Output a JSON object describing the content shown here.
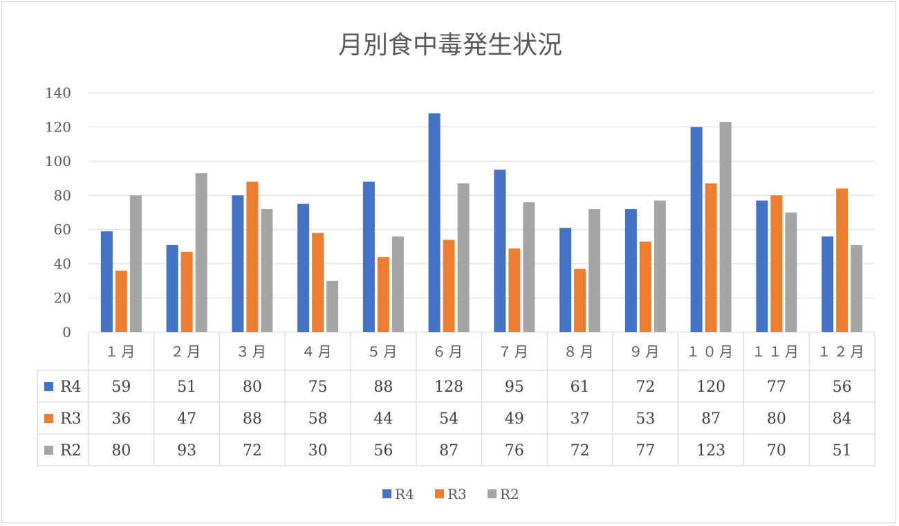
{
  "chart_data": {
    "type": "bar",
    "title": "月別食中毒発生状況",
    "categories": [
      "１月",
      "２月",
      "３月",
      "４月",
      "５月",
      "６月",
      "７月",
      "８月",
      "９月",
      "１０月",
      "１１月",
      "１２月"
    ],
    "series": [
      {
        "name": "R4",
        "color": "#4472c4",
        "values": [
          59,
          51,
          80,
          75,
          88,
          128,
          95,
          61,
          72,
          120,
          77,
          56
        ]
      },
      {
        "name": "R3",
        "color": "#ed7d31",
        "values": [
          36,
          47,
          88,
          58,
          44,
          54,
          49,
          37,
          53,
          87,
          80,
          84
        ]
      },
      {
        "name": "R2",
        "color": "#a5a5a5",
        "values": [
          80,
          93,
          72,
          30,
          56,
          87,
          76,
          72,
          77,
          123,
          70,
          51
        ]
      }
    ],
    "ylim": [
      0,
      140
    ],
    "yticks": [
      0,
      20,
      40,
      60,
      80,
      100,
      120,
      140
    ],
    "grid": true,
    "legend": "bottom",
    "data_table": true
  }
}
